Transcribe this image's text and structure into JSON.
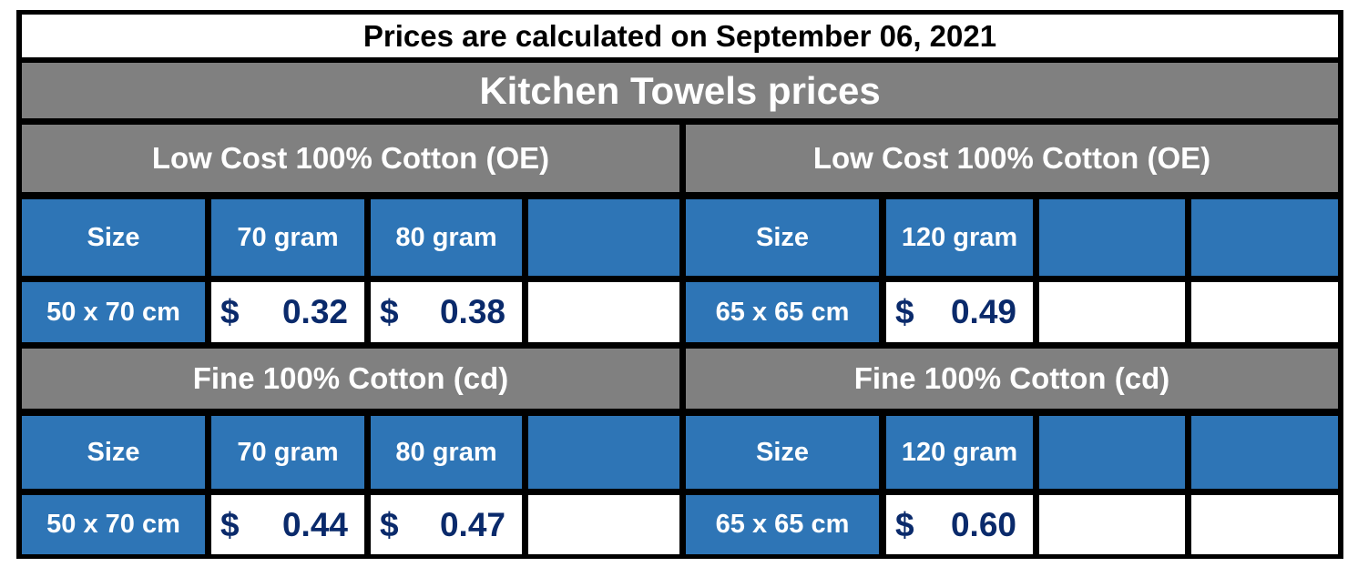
{
  "header": {
    "date_line": "Prices are calculated on September 06, 2021",
    "title": "Kitchen Towels prices"
  },
  "colors": {
    "header_blue": "#2e75b6",
    "section_gray": "#808080",
    "price_text": "#0a2a6b"
  },
  "currency_symbol": "$",
  "blocks": [
    {
      "section": "Low Cost 100% Cotton (OE)",
      "headers": [
        "Size",
        "70 gram",
        "80 gram",
        ""
      ],
      "size": "50 x 70 cm",
      "prices": [
        "0.32",
        "0.38"
      ]
    },
    {
      "section": "Low Cost 100% Cotton (OE)",
      "headers": [
        "Size",
        "120 gram",
        "",
        ""
      ],
      "size": "65 x 65 cm",
      "prices": [
        "0.49"
      ]
    },
    {
      "section": "Fine 100% Cotton (cd)",
      "headers": [
        "Size",
        "70 gram",
        "80 gram",
        ""
      ],
      "size": "50 x 70 cm",
      "prices": [
        "0.44",
        "0.47"
      ]
    },
    {
      "section": "Fine 100% Cotton (cd)",
      "headers": [
        "Size",
        "120 gram",
        "",
        ""
      ],
      "size": "65 x 65 cm",
      "prices": [
        "0.60"
      ]
    }
  ]
}
